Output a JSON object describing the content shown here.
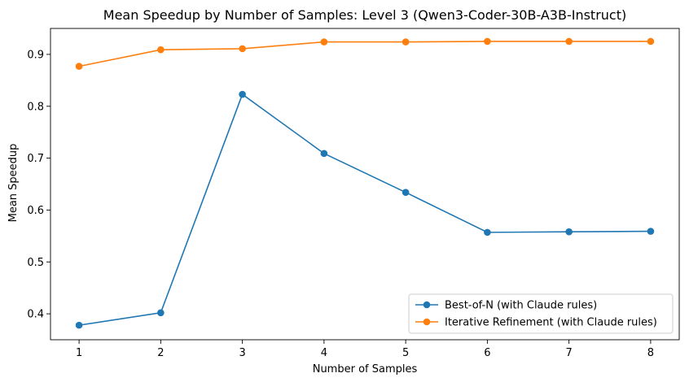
{
  "chart_data": {
    "type": "line",
    "title": "Mean Speedup by Number of Samples: Level 3 (Qwen3-Coder-30B-A3B-Instruct)",
    "xlabel": "Number of Samples",
    "ylabel": "Mean Speedup",
    "x": [
      1,
      2,
      3,
      4,
      5,
      6,
      7,
      8
    ],
    "xlim": [
      0.65,
      8.35
    ],
    "ylim": [
      0.35,
      0.95
    ],
    "xticks": [
      1,
      2,
      3,
      4,
      5,
      6,
      7,
      8
    ],
    "yticks": [
      0.4,
      0.5,
      0.6,
      0.7,
      0.8,
      0.9
    ],
    "ytick_labels": [
      "0.4",
      "0.5",
      "0.6",
      "0.7",
      "0.8",
      "0.9"
    ],
    "grid": false,
    "legend_position": "lower-right",
    "series": [
      {
        "name": "Best-of-N (with Claude rules)",
        "color": "#1f77b4",
        "marker": "circle",
        "values": [
          0.378,
          0.402,
          0.823,
          0.709,
          0.634,
          0.557,
          0.558,
          0.559
        ]
      },
      {
        "name": "Iterative Refinement (with Claude rules)",
        "color": "#ff7f0e",
        "marker": "circle",
        "values": [
          0.877,
          0.909,
          0.911,
          0.924,
          0.924,
          0.925,
          0.925,
          0.925
        ]
      }
    ]
  }
}
